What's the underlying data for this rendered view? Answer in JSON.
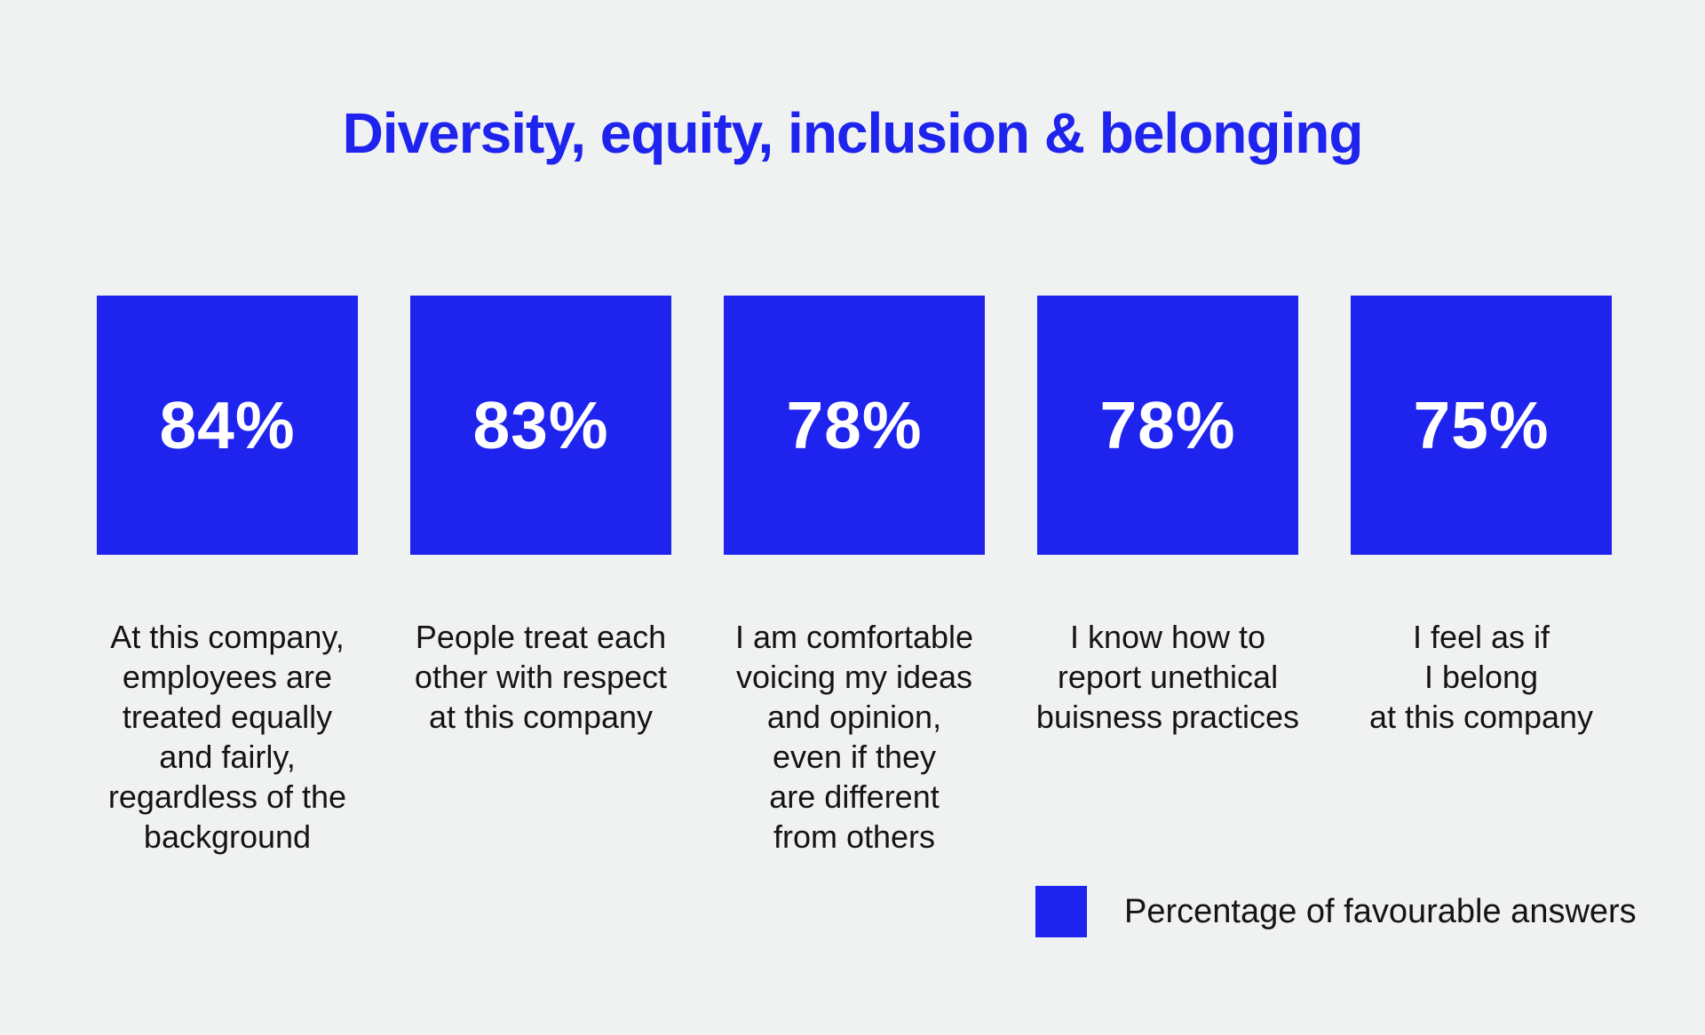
{
  "title": "Diversity, equity, inclusion & belonging",
  "colors": {
    "accent": "#1E23EE",
    "background": "#F0F1F1",
    "text": "#141414",
    "value_text": "#FFFFFF"
  },
  "cards": [
    {
      "value": "84%",
      "caption": "At this company,\nemployees are\ntreated equally\nand fairly,\nregardless of the\nbackground"
    },
    {
      "value": "83%",
      "caption": "People treat each\nother with respect\nat this company"
    },
    {
      "value": "78%",
      "caption": "I am comfortable\nvoicing my ideas\nand opinion,\neven if they\nare different\nfrom others"
    },
    {
      "value": "78%",
      "caption": "I know how to\nreport unethical\nbuisness practices"
    },
    {
      "value": "75%",
      "caption": "I feel as if\nI belong\nat this company"
    }
  ],
  "legend": {
    "label": "Percentage of favourable answers"
  },
  "chart_data": {
    "type": "bar",
    "title": "Diversity, equity, inclusion & belonging",
    "categories": [
      "At this company, employees are treated equally and fairly, regardless of the background",
      "People treat each other with respect at this company",
      "I am comfortable voicing my ideas and opinion, even if they are different from others",
      "I know how to report unethical buisness practices",
      "I feel as if I belong at this company"
    ],
    "values": [
      84,
      83,
      78,
      78,
      75
    ],
    "value_labels": [
      "84%",
      "83%",
      "78%",
      "78%",
      "75%"
    ],
    "unit": "%",
    "ylim": [
      0,
      100
    ],
    "legend_entries": [
      "Percentage of favourable answers"
    ],
    "legend_position": "bottom-right",
    "grid": false
  }
}
